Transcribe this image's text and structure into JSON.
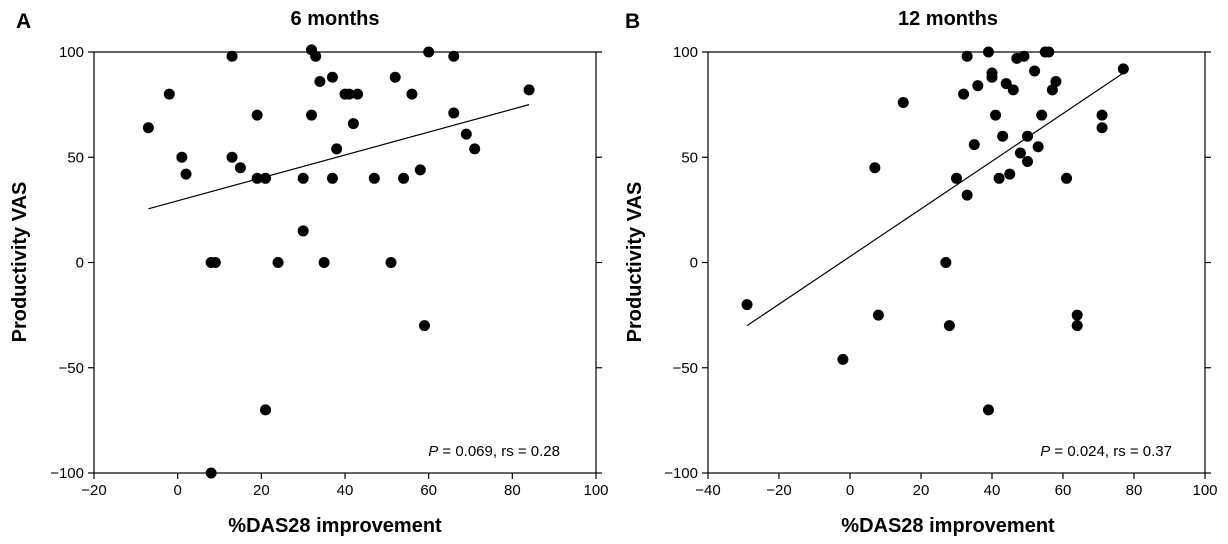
{
  "chart_data": [
    {
      "type": "scatter",
      "panel_label": "A",
      "title": "6 months",
      "xlabel": "%DAS28 improvement",
      "ylabel": "Productivity VAS",
      "xlim": [
        -20,
        100
      ],
      "ylim": [
        -100,
        100
      ],
      "xticks": [
        -20,
        0,
        20,
        40,
        60,
        80,
        100
      ],
      "yticks": [
        -100,
        -50,
        0,
        50,
        100
      ],
      "annotation": {
        "p_italic": "P",
        "rest": " = 0.069, rs = 0.28"
      },
      "trendline": [
        [
          -7,
          25.5
        ],
        [
          84,
          75
        ]
      ],
      "points": [
        [
          -7,
          64
        ],
        [
          -2,
          80
        ],
        [
          1,
          50
        ],
        [
          2,
          42
        ],
        [
          8,
          0
        ],
        [
          9,
          0
        ],
        [
          8,
          -100
        ],
        [
          13,
          98
        ],
        [
          13,
          50
        ],
        [
          15,
          45
        ],
        [
          19,
          70
        ],
        [
          19,
          40
        ],
        [
          21,
          40
        ],
        [
          21,
          -70
        ],
        [
          24,
          0
        ],
        [
          30,
          40
        ],
        [
          30,
          15
        ],
        [
          32,
          70
        ],
        [
          32,
          101
        ],
        [
          33,
          98
        ],
        [
          34,
          86
        ],
        [
          35,
          0
        ],
        [
          37,
          88
        ],
        [
          37,
          40
        ],
        [
          38,
          54
        ],
        [
          40,
          80
        ],
        [
          41,
          80
        ],
        [
          42,
          66
        ],
        [
          43,
          80
        ],
        [
          47,
          40
        ],
        [
          51,
          0
        ],
        [
          52,
          88
        ],
        [
          54,
          40
        ],
        [
          56,
          80
        ],
        [
          58,
          44
        ],
        [
          59,
          -30
        ],
        [
          60,
          100
        ],
        [
          66,
          98
        ],
        [
          66,
          71
        ],
        [
          69,
          61
        ],
        [
          71,
          54
        ],
        [
          84,
          82
        ]
      ]
    },
    {
      "type": "scatter",
      "panel_label": "B",
      "title": "12 months",
      "xlabel": "%DAS28 improvement",
      "ylabel": "Productivity VAS",
      "xlim": [
        -40,
        100
      ],
      "ylim": [
        -100,
        100
      ],
      "xticks": [
        -40,
        -20,
        0,
        20,
        40,
        60,
        80,
        100
      ],
      "yticks": [
        -100,
        -50,
        0,
        50,
        100
      ],
      "annotation": {
        "p_italic": "P",
        "rest": " = 0.024, rs = 0.37"
      },
      "trendline": [
        [
          -29,
          -30
        ],
        [
          77,
          90
        ]
      ],
      "points": [
        [
          -29,
          -20
        ],
        [
          -2,
          -46
        ],
        [
          7,
          45
        ],
        [
          8,
          -25
        ],
        [
          15,
          76
        ],
        [
          27,
          0
        ],
        [
          28,
          -30
        ],
        [
          30,
          40
        ],
        [
          32,
          80
        ],
        [
          33,
          32
        ],
        [
          33,
          98
        ],
        [
          35,
          56
        ],
        [
          36,
          84
        ],
        [
          39,
          100
        ],
        [
          40,
          90
        ],
        [
          40,
          88
        ],
        [
          39,
          -70
        ],
        [
          41,
          70
        ],
        [
          42,
          40
        ],
        [
          43,
          60
        ],
        [
          44,
          85
        ],
        [
          45,
          42
        ],
        [
          46,
          82
        ],
        [
          47,
          97
        ],
        [
          48,
          52
        ],
        [
          49,
          98
        ],
        [
          50,
          48
        ],
        [
          50,
          60
        ],
        [
          52,
          91
        ],
        [
          53,
          55
        ],
        [
          54,
          70
        ],
        [
          55,
          100
        ],
        [
          56,
          100
        ],
        [
          57,
          82
        ],
        [
          58,
          86
        ],
        [
          61,
          40
        ],
        [
          64,
          -30
        ],
        [
          64,
          -25
        ],
        [
          71,
          70
        ],
        [
          71,
          64
        ],
        [
          77,
          92
        ]
      ]
    }
  ]
}
